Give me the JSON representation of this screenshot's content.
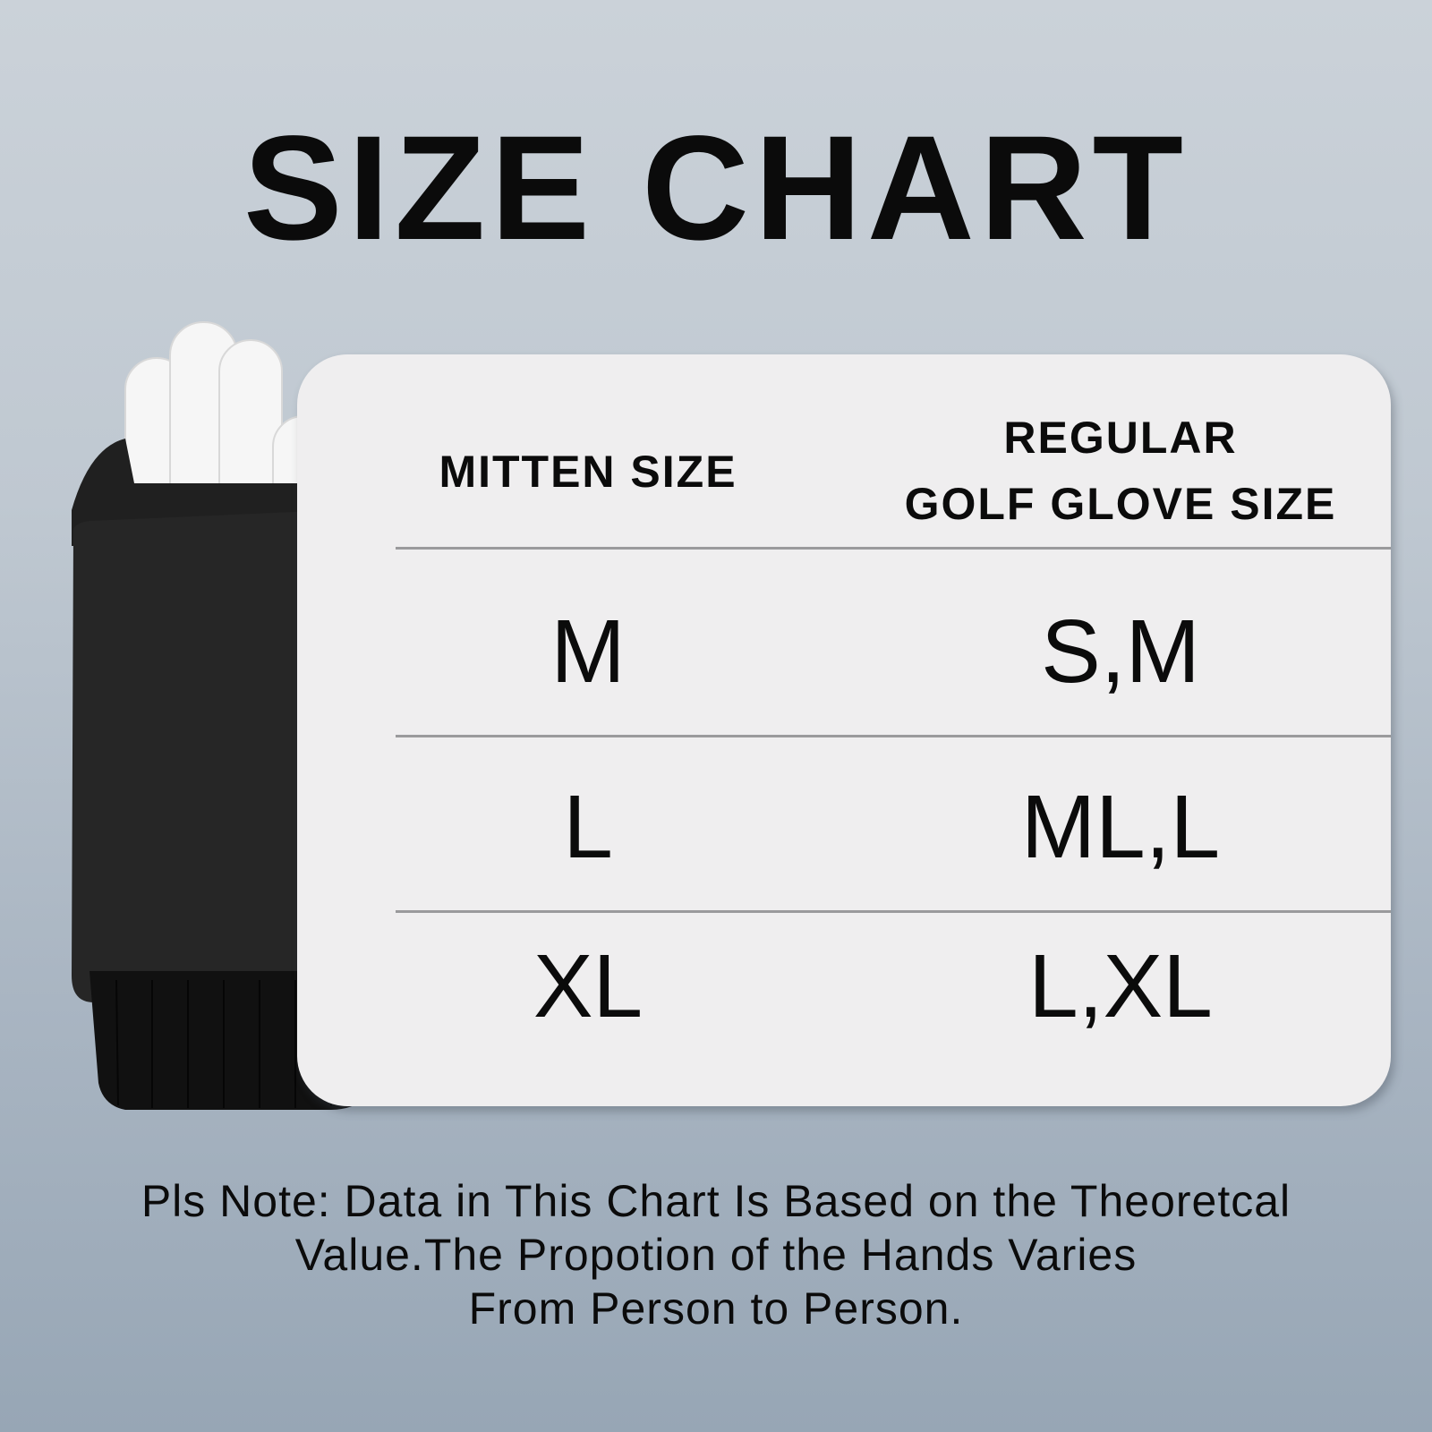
{
  "title": "SIZE CHART",
  "table": {
    "headers": [
      "MITTEN SIZE",
      "REGULAR\nGOLF GLOVE SIZE"
    ],
    "header_lines": {
      "col1": "MITTEN SIZE",
      "col2_line1": "REGULAR",
      "col2_line2": "GOLF GLOVE SIZE"
    },
    "rows": [
      {
        "mitten": "M",
        "golf": "S,M"
      },
      {
        "mitten": "L",
        "golf": "ML,L"
      },
      {
        "mitten": "XL",
        "golf": "L,XL"
      }
    ]
  },
  "note": {
    "line1": "Pls Note: Data in This Chart Is Based on the Theoretcal",
    "line2": "Value.The Propotion of the Hands Varies",
    "line3": "From Person to Person."
  },
  "colors": {
    "card": "#efeeef",
    "text": "#0b0b0b",
    "mitten": "#1c1c1c",
    "glove": "#f4f4f4"
  }
}
